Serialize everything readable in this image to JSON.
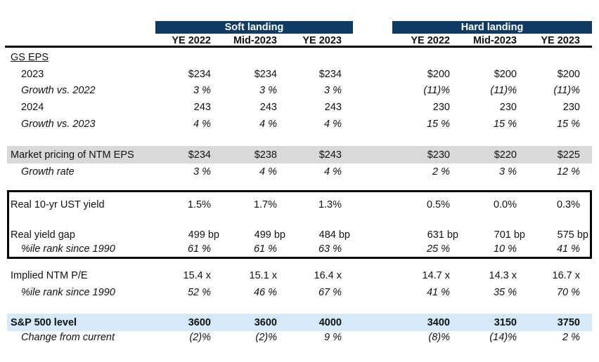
{
  "groups": [
    "Soft landing",
    "Hard landing"
  ],
  "columns": [
    "YE 2022",
    "Mid-2023",
    "YE 2023",
    "YE 2022",
    "Mid-2023",
    "YE 2023"
  ],
  "colors": {
    "header_bar": "#0f3a63",
    "gray_band": "#d9d9d9",
    "blue_band": "#d6e9f8"
  },
  "rows": [
    {
      "label": "GS EPS",
      "style": "underline",
      "values": []
    },
    {
      "label": "2023",
      "style": "indent",
      "values": [
        "$234",
        "$234",
        "$234",
        "$200",
        "$200",
        "$200"
      ]
    },
    {
      "label": "Growth vs. 2022",
      "style": "indent italic",
      "values": [
        "3 %",
        "3 %",
        "3 %",
        "(11)%",
        "(11)%",
        "(11)%"
      ]
    },
    {
      "label": "2024",
      "style": "indent",
      "values": [
        "243",
        "243",
        "243",
        "230",
        "230",
        "230"
      ]
    },
    {
      "label": "Growth vs. 2023",
      "style": "indent italic",
      "values": [
        "4 %",
        "4 %",
        "4 %",
        "15 %",
        "15 %",
        "15 %"
      ]
    },
    {
      "label": "Market pricing of NTM EPS",
      "style": "gray",
      "values": [
        "$234",
        "$238",
        "$243",
        "$230",
        "$220",
        "$225"
      ]
    },
    {
      "label": "Growth rate",
      "style": "indent italic",
      "values": [
        "3 %",
        "4 %",
        "4 %",
        "2 %",
        "3 %",
        "12 %"
      ]
    },
    {
      "label": "Real 10-yr UST yield",
      "style": "",
      "values": [
        "1.5%",
        "1.7%",
        "1.3%",
        "0.5%",
        "0.0%",
        "0.3%"
      ]
    },
    {
      "label": "Real yield gap",
      "style": "bp",
      "values": [
        "499 bp",
        "499 bp",
        "484 bp",
        "631 bp",
        "701 bp",
        "575 bp"
      ]
    },
    {
      "label": "%ile rank since 1990",
      "style": "indent italic",
      "values": [
        "61 %",
        "61 %",
        "63 %",
        "25 %",
        "10 %",
        "41 %"
      ]
    },
    {
      "label": "Implied NTM P/E",
      "style": "",
      "values": [
        "15.4 x",
        "15.1 x",
        "16.4 x",
        "14.7 x",
        "14.3 x",
        "16.7 x"
      ]
    },
    {
      "label": "%ile rank since 1990",
      "style": "indent italic",
      "values": [
        "52 %",
        "46 %",
        "67 %",
        "41 %",
        "35 %",
        "70 %"
      ]
    },
    {
      "label": "S&P 500 level",
      "style": "bold blue",
      "values": [
        "3600",
        "3600",
        "4000",
        "3400",
        "3150",
        "3750"
      ]
    },
    {
      "label": "Change from current",
      "style": "indent italic",
      "values": [
        "(2)%",
        "(2)%",
        "9 %",
        "(8)%",
        "(14)%",
        "2 %"
      ]
    }
  ]
}
